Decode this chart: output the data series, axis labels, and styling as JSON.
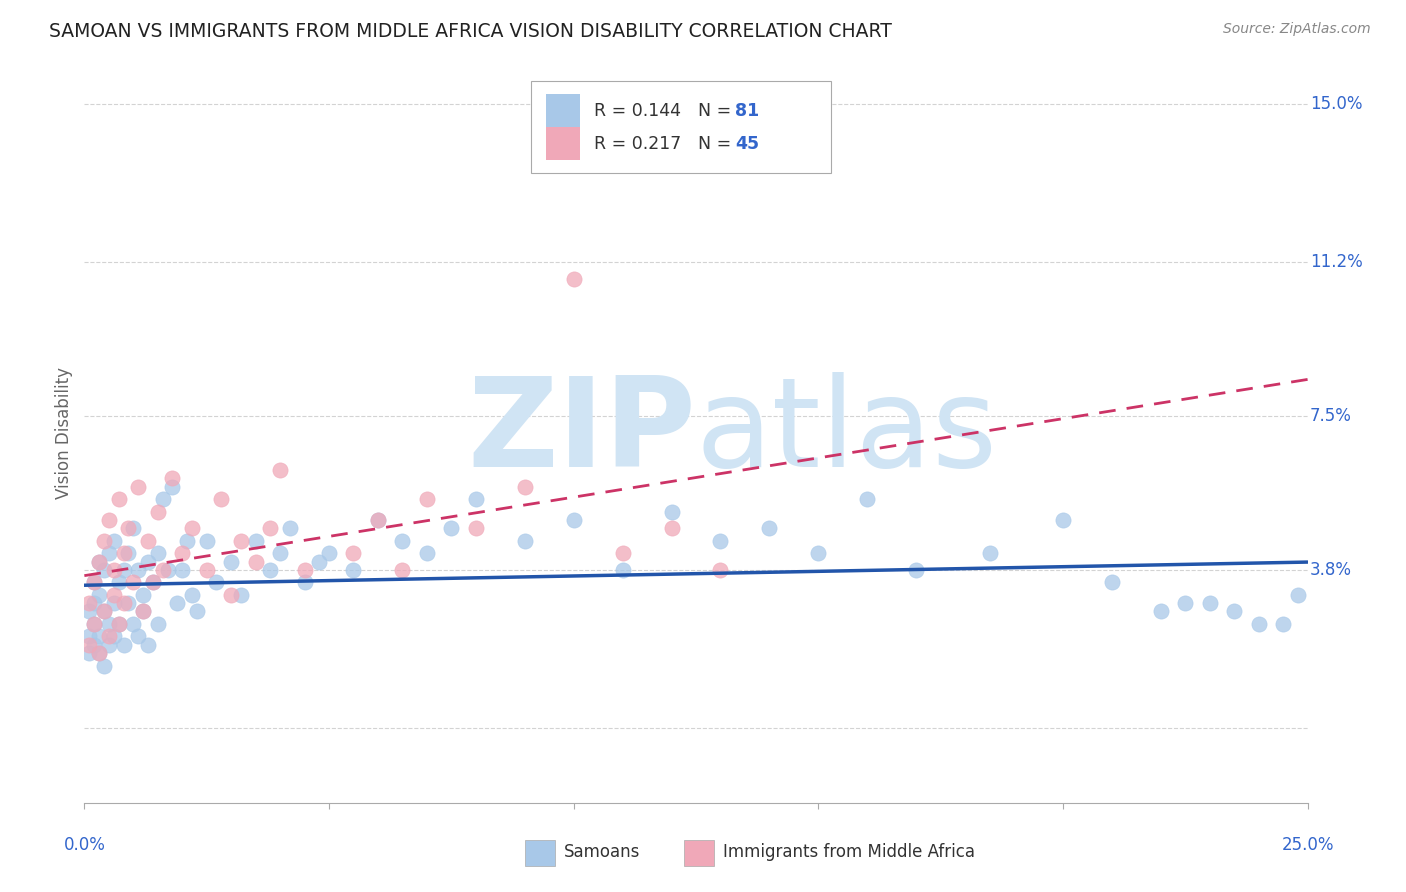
{
  "title": "SAMOAN VS IMMIGRANTS FROM MIDDLE AFRICA VISION DISABILITY CORRELATION CHART",
  "source_text": "Source: ZipAtlas.com",
  "ylabel": "Vision Disability",
  "xlim": [
    0.0,
    0.25
  ],
  "ylim": [
    -0.018,
    0.16
  ],
  "yticks": [
    0.0,
    0.038,
    0.075,
    0.112,
    0.15
  ],
  "ytick_labels": [
    "",
    "3.8%",
    "7.5%",
    "11.2%",
    "15.0%"
  ],
  "grid_color": "#c8c8c8",
  "background_color": "#ffffff",
  "blue_color": "#a8c8e8",
  "pink_color": "#f0a8b8",
  "blue_line_color": "#2255aa",
  "pink_line_color": "#cc3366",
  "R_blue": 0.144,
  "N_blue": 81,
  "R_pink": 0.217,
  "N_pink": 45,
  "title_color": "#222222",
  "axis_label_color": "#666666",
  "tick_color_right": "#3366cc",
  "watermark_color": "#d0e4f4",
  "legend_label_blue": "Samoans",
  "legend_label_pink": "Immigrants from Middle Africa",
  "blue_scatter_x": [
    0.001,
    0.001,
    0.001,
    0.002,
    0.002,
    0.002,
    0.002,
    0.003,
    0.003,
    0.003,
    0.003,
    0.004,
    0.004,
    0.004,
    0.005,
    0.005,
    0.005,
    0.006,
    0.006,
    0.006,
    0.007,
    0.007,
    0.008,
    0.008,
    0.009,
    0.009,
    0.01,
    0.01,
    0.011,
    0.011,
    0.012,
    0.012,
    0.013,
    0.013,
    0.014,
    0.015,
    0.015,
    0.016,
    0.017,
    0.018,
    0.019,
    0.02,
    0.021,
    0.022,
    0.023,
    0.025,
    0.027,
    0.03,
    0.032,
    0.035,
    0.038,
    0.04,
    0.042,
    0.045,
    0.048,
    0.05,
    0.055,
    0.06,
    0.065,
    0.07,
    0.075,
    0.08,
    0.09,
    0.1,
    0.11,
    0.12,
    0.13,
    0.14,
    0.15,
    0.16,
    0.17,
    0.185,
    0.2,
    0.21,
    0.22,
    0.225,
    0.23,
    0.235,
    0.24,
    0.245,
    0.248
  ],
  "blue_scatter_y": [
    0.022,
    0.028,
    0.018,
    0.025,
    0.03,
    0.02,
    0.035,
    0.022,
    0.032,
    0.018,
    0.04,
    0.028,
    0.038,
    0.015,
    0.025,
    0.042,
    0.02,
    0.03,
    0.045,
    0.022,
    0.035,
    0.025,
    0.038,
    0.02,
    0.03,
    0.042,
    0.025,
    0.048,
    0.022,
    0.038,
    0.032,
    0.028,
    0.04,
    0.02,
    0.035,
    0.042,
    0.025,
    0.055,
    0.038,
    0.058,
    0.03,
    0.038,
    0.045,
    0.032,
    0.028,
    0.045,
    0.035,
    0.04,
    0.032,
    0.045,
    0.038,
    0.042,
    0.048,
    0.035,
    0.04,
    0.042,
    0.038,
    0.05,
    0.045,
    0.042,
    0.048,
    0.055,
    0.045,
    0.05,
    0.038,
    0.052,
    0.045,
    0.048,
    0.042,
    0.055,
    0.038,
    0.042,
    0.05,
    0.035,
    0.028,
    0.03,
    0.03,
    0.028,
    0.025,
    0.025,
    0.032
  ],
  "pink_scatter_x": [
    0.001,
    0.001,
    0.002,
    0.002,
    0.003,
    0.003,
    0.004,
    0.004,
    0.005,
    0.005,
    0.006,
    0.006,
    0.007,
    0.007,
    0.008,
    0.008,
    0.009,
    0.01,
    0.011,
    0.012,
    0.013,
    0.014,
    0.015,
    0.016,
    0.018,
    0.02,
    0.022,
    0.025,
    0.028,
    0.03,
    0.032,
    0.035,
    0.038,
    0.04,
    0.045,
    0.055,
    0.06,
    0.065,
    0.07,
    0.08,
    0.09,
    0.1,
    0.11,
    0.12,
    0.13
  ],
  "pink_scatter_y": [
    0.02,
    0.03,
    0.025,
    0.035,
    0.018,
    0.04,
    0.028,
    0.045,
    0.022,
    0.05,
    0.032,
    0.038,
    0.025,
    0.055,
    0.03,
    0.042,
    0.048,
    0.035,
    0.058,
    0.028,
    0.045,
    0.035,
    0.052,
    0.038,
    0.06,
    0.042,
    0.048,
    0.038,
    0.055,
    0.032,
    0.045,
    0.04,
    0.048,
    0.062,
    0.038,
    0.042,
    0.05,
    0.038,
    0.055,
    0.048,
    0.058,
    0.108,
    0.042,
    0.048,
    0.038
  ]
}
